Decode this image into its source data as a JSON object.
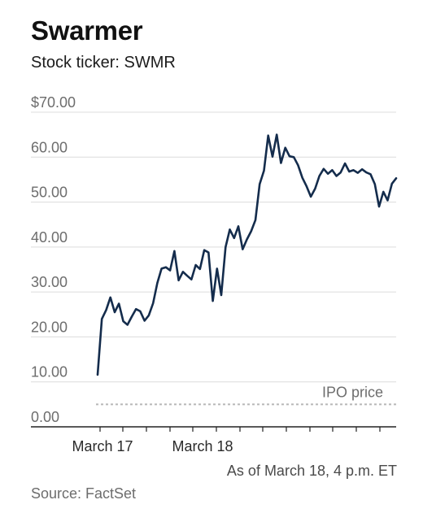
{
  "header": {
    "title": "Swarmer",
    "subtitle": "Stock ticker: SWMR"
  },
  "footer": {
    "as_of": "As of March 18, 4 p.m. ET",
    "source": "Source: FactSet"
  },
  "colors": {
    "line": "#142c4c",
    "grid": "#dcdcdc",
    "ipo_line": "#b8b8b8",
    "axis": "#222222"
  },
  "chart_data": {
    "type": "line",
    "title": "Swarmer",
    "subtitle": "Stock ticker: SWMR",
    "xlabel": "",
    "ylabel": "",
    "ylim": [
      0,
      70
    ],
    "y_ticks": [
      "$70.00",
      "60.00",
      "50.00",
      "40.00",
      "30.00",
      "20.00",
      "10.00",
      "0.00"
    ],
    "x_ticks": [
      "March 17",
      "March 18"
    ],
    "grid": true,
    "ipo_price": 5,
    "annotations": [
      "IPO price"
    ],
    "series": [
      {
        "values": [
          11.6,
          24.0,
          26.0,
          28.8,
          25.5,
          27.4,
          23.5,
          22.7,
          24.5,
          26.2,
          25.7,
          23.6,
          24.8,
          27.5,
          32.0,
          35.2,
          35.5,
          34.8,
          39.1,
          32.6,
          34.5,
          33.6,
          32.8,
          36.0,
          35.1,
          39.3,
          38.8,
          28.0,
          35.2,
          29.3,
          40.0,
          43.9,
          42.0,
          44.6,
          39.5,
          41.7,
          43.5,
          46.0,
          54.0,
          57.0,
          64.8,
          60.1,
          65.0,
          58.7,
          62.1,
          60.2,
          60.0,
          58.2,
          55.4,
          53.5,
          51.2,
          53.0,
          55.8,
          57.4,
          56.3,
          57.1,
          55.8,
          56.6,
          58.6,
          56.8,
          57.1,
          56.5,
          57.3,
          56.6,
          56.2,
          54.0,
          49.0,
          52.3,
          50.4,
          54.1,
          55.3
        ]
      }
    ]
  }
}
